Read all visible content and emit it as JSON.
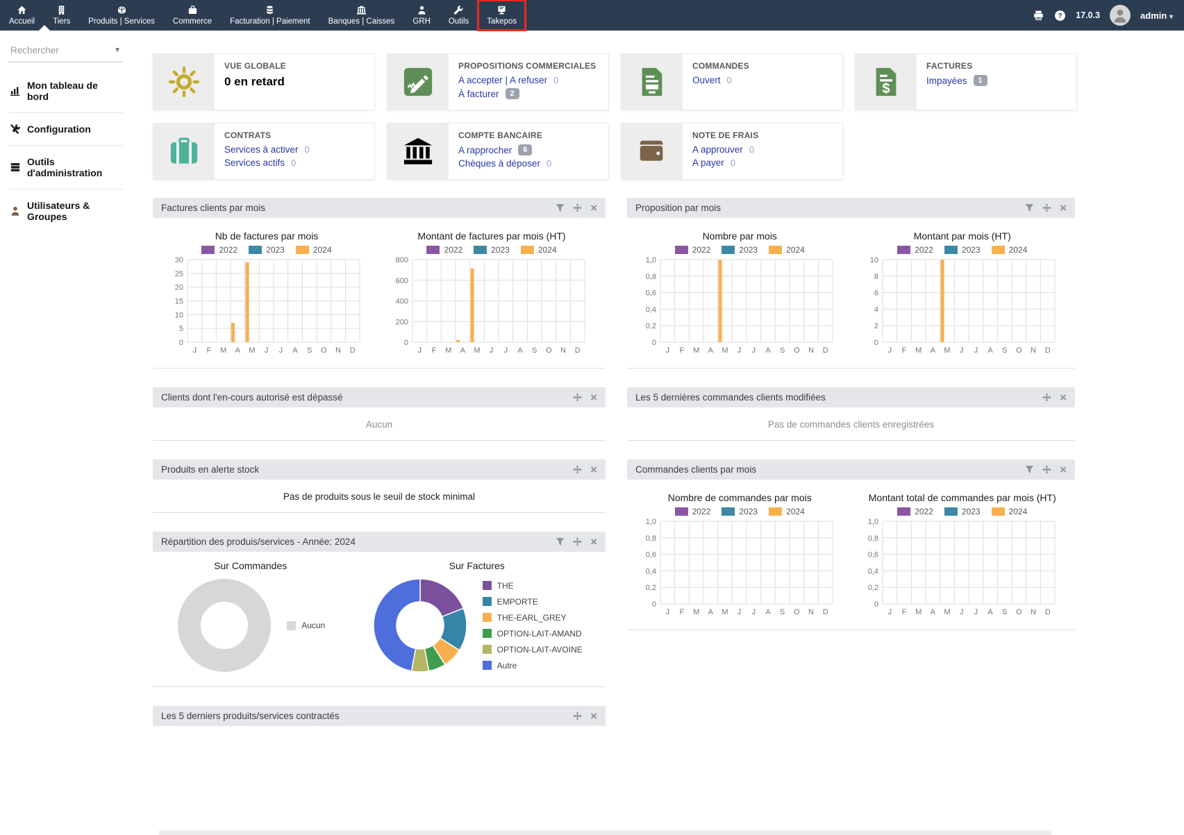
{
  "topnav": {
    "items": [
      {
        "id": "accueil",
        "label": "Accueil",
        "icon": "home-icon",
        "active": true
      },
      {
        "id": "tiers",
        "label": "Tiers",
        "icon": "building-icon"
      },
      {
        "id": "produits-services",
        "label": "Produits | Services",
        "icon": "product-icon"
      },
      {
        "id": "commerce",
        "label": "Commerce",
        "icon": "briefcase-icon"
      },
      {
        "id": "facturation-paiement",
        "label": "Facturation | Paiement",
        "icon": "coins-icon"
      },
      {
        "id": "banques-caisses",
        "label": "Banques | Caisses",
        "icon": "bank-icon"
      },
      {
        "id": "grh",
        "label": "GRH",
        "icon": "person-icon"
      },
      {
        "id": "outils",
        "label": "Outils",
        "icon": "wrench-icon"
      },
      {
        "id": "takepos",
        "label": "Takepos",
        "icon": "pos-icon",
        "highlighted": true
      }
    ],
    "right": {
      "version": "17.0.3",
      "user": "admin"
    }
  },
  "sidebar": {
    "search_placeholder": "Rechercher",
    "items": [
      {
        "id": "dashboard",
        "label": "Mon tableau de bord",
        "icon": "bar-chart-icon"
      },
      {
        "id": "configuration",
        "label": "Configuration",
        "icon": "tools-icon"
      },
      {
        "id": "admin-tools",
        "label": "Outils d'administration",
        "icon": "server-icon"
      },
      {
        "id": "users-groups",
        "label": "Utilisateurs & Groupes",
        "icon": "user-icon",
        "brown": true
      }
    ]
  },
  "cards": [
    {
      "id": "vue-globale",
      "title": "VUE GLOBALE",
      "icon": "sun-icon",
      "icon_color": "#c2ad2f",
      "big_text": "0 en retard"
    },
    {
      "id": "propositions",
      "title": "PROPOSITIONS COMMERCIALES",
      "icon": "doc-edit-icon",
      "icon_color": "#5e8f56",
      "lines": [
        {
          "text": "A accepter | A refuser",
          "count": "0"
        },
        {
          "text": "À facturer",
          "badge": "2"
        }
      ]
    },
    {
      "id": "commandes",
      "title": "COMMANDES",
      "icon": "doc-lines-icon",
      "icon_color": "#5e8f56",
      "lines": [
        {
          "text": "Ouvert",
          "count": "0"
        }
      ]
    },
    {
      "id": "factures",
      "title": "FACTURES",
      "icon": "doc-dollar-icon",
      "icon_color": "#5e8f56",
      "lines": [
        {
          "text": "Impayées",
          "badge": "1"
        }
      ]
    },
    {
      "id": "contrats",
      "title": "CONTRATS",
      "icon": "suitcase-icon",
      "icon_color": "#4fb39a",
      "lines": [
        {
          "text": "Services à activer",
          "count": "0"
        },
        {
          "text": "Services actifs",
          "count": "0"
        }
      ]
    },
    {
      "id": "compte-bancaire",
      "title": "COMPTE BANCAIRE",
      "icon": "bank-icon",
      "icon_color": "#b0ab3a",
      "lines": [
        {
          "text": "A rapprocher",
          "badge": "6"
        },
        {
          "text": "Chèques à déposer",
          "count": "0"
        }
      ]
    },
    {
      "id": "note-de-frais",
      "title": "NOTE DE FRAIS",
      "icon": "wallet-icon",
      "icon_color": "#7d6347",
      "lines": [
        {
          "text": "A approuver",
          "count": "0"
        },
        {
          "text": "A payer",
          "count": "0"
        }
      ]
    }
  ],
  "widgets": {
    "left": [
      {
        "id": "factures-par-mois",
        "title": "Factures clients par mois",
        "icons": [
          "filter",
          "move",
          "close"
        ],
        "chart_data": [
          {
            "id": "nb-factures",
            "type": "bar",
            "title": "Nb de factures par mois",
            "ymax": 30,
            "yticks": [
              "30",
              "25",
              "20",
              "15",
              "10",
              "5",
              "0"
            ],
            "categories": [
              "J",
              "F",
              "M",
              "A",
              "M",
              "J",
              "J",
              "A",
              "S",
              "O",
              "N",
              "D"
            ],
            "series": [
              {
                "name": "2022",
                "color": "#8a57a5",
                "values": [
                  0,
                  0,
                  0,
                  0,
                  0,
                  0,
                  0,
                  0,
                  0,
                  0,
                  0,
                  0
                ]
              },
              {
                "name": "2023",
                "color": "#3e87a6",
                "values": [
                  0,
                  0,
                  0,
                  0,
                  0,
                  0,
                  0,
                  0,
                  0,
                  0,
                  0,
                  0
                ]
              },
              {
                "name": "2024",
                "color": "#f8b04e",
                "values": [
                  0,
                  0,
                  7,
                  29,
                  0,
                  0,
                  0,
                  0,
                  0,
                  0,
                  0,
                  0
                ]
              }
            ]
          },
          {
            "id": "montant-factures",
            "type": "bar",
            "title": "Montant de factures par mois (HT)",
            "ymax": 800,
            "yticks": [
              "800",
              "600",
              "400",
              "200",
              "0"
            ],
            "categories": [
              "J",
              "F",
              "M",
              "A",
              "M",
              "J",
              "J",
              "A",
              "S",
              "O",
              "N",
              "D"
            ],
            "series": [
              {
                "name": "2022",
                "color": "#8a57a5",
                "values": [
                  0,
                  0,
                  0,
                  0,
                  0,
                  0,
                  0,
                  0,
                  0,
                  0,
                  0,
                  0
                ]
              },
              {
                "name": "2023",
                "color": "#3e87a6",
                "values": [
                  0,
                  0,
                  0,
                  0,
                  0,
                  0,
                  0,
                  0,
                  0,
                  0,
                  0,
                  0
                ]
              },
              {
                "name": "2024",
                "color": "#f8b04e",
                "values": [
                  0,
                  0,
                  20,
                  715,
                  0,
                  0,
                  0,
                  0,
                  0,
                  0,
                  0,
                  0
                ]
              }
            ]
          }
        ]
      },
      {
        "id": "encours-depasse",
        "title": "Clients dont l'en-cours autorisé est dépassé",
        "icons": [
          "move",
          "close"
        ],
        "body_text": "Aucun",
        "muted": true
      },
      {
        "id": "alerte-stock",
        "title": "Produits en alerte stock",
        "icons": [
          "move",
          "close"
        ],
        "body_text": "Pas de produits sous le seuil de stock minimal",
        "muted": false
      },
      {
        "id": "repartition-produits",
        "title": "Répartition des produis/services - Année: 2024",
        "icons": [
          "filter",
          "move",
          "close"
        ],
        "chart_data": [
          {
            "id": "donut-commandes",
            "type": "donut",
            "title": "Sur Commandes",
            "slices": [
              {
                "label": "Aucun",
                "value": 100,
                "color": "#d7d7d7"
              }
            ]
          },
          {
            "id": "donut-factures",
            "type": "donut",
            "title": "Sur Factures",
            "slices": [
              {
                "label": "THE",
                "value": 19,
                "color": "#7b519d"
              },
              {
                "label": "EMPORTE",
                "value": 15,
                "color": "#3585a8"
              },
              {
                "label": "THE-EARL_GREY",
                "value": 7,
                "color": "#f8b04e"
              },
              {
                "label": "OPTION-LAIT-AMAND",
                "value": 6,
                "color": "#3f9e4e"
              },
              {
                "label": "OPTION-LAIT-AVOINE",
                "value": 6,
                "color": "#b4b565"
              },
              {
                "label": "Autre",
                "value": 47,
                "color": "#4d6edb"
              }
            ]
          }
        ]
      },
      {
        "id": "derniers-produits",
        "title": "Les 5 derniers produits/services contractés",
        "icons": [
          "move",
          "close"
        ]
      }
    ],
    "right": [
      {
        "id": "proposition-par-mois",
        "title": "Proposition par mois",
        "icons": [
          "filter",
          "move",
          "close"
        ],
        "chart_data": [
          {
            "id": "nb-propositions",
            "type": "bar",
            "title": "Nombre par mois",
            "ymax": 1,
            "yticks": [
              "1,0",
              "0,8",
              "0,6",
              "0,4",
              "0,2",
              "0"
            ],
            "categories": [
              "J",
              "F",
              "M",
              "A",
              "M",
              "J",
              "J",
              "A",
              "S",
              "O",
              "N",
              "D"
            ],
            "series": [
              {
                "name": "2022",
                "color": "#8a57a5",
                "values": [
                  0,
                  0,
                  0,
                  0,
                  0,
                  0,
                  0,
                  0,
                  0,
                  0,
                  0,
                  0
                ]
              },
              {
                "name": "2023",
                "color": "#3e87a6",
                "values": [
                  0,
                  0,
                  0,
                  0,
                  0,
                  0,
                  0,
                  0,
                  0,
                  0,
                  0,
                  0
                ]
              },
              {
                "name": "2024",
                "color": "#f8b04e",
                "values": [
                  0,
                  0,
                  0,
                  1,
                  0,
                  0,
                  0,
                  0,
                  0,
                  0,
                  0,
                  0
                ]
              }
            ]
          },
          {
            "id": "montant-propositions",
            "type": "bar",
            "title": "Montant par mois (HT)",
            "ymax": 10,
            "yticks": [
              "10",
              "8",
              "6",
              "4",
              "2",
              "0"
            ],
            "categories": [
              "J",
              "F",
              "M",
              "A",
              "M",
              "J",
              "J",
              "A",
              "S",
              "O",
              "N",
              "D"
            ],
            "series": [
              {
                "name": "2022",
                "color": "#8a57a5",
                "values": [
                  0,
                  0,
                  0,
                  0,
                  0,
                  0,
                  0,
                  0,
                  0,
                  0,
                  0,
                  0
                ]
              },
              {
                "name": "2023",
                "color": "#3e87a6",
                "values": [
                  0,
                  0,
                  0,
                  0,
                  0,
                  0,
                  0,
                  0,
                  0,
                  0,
                  0,
                  0
                ]
              },
              {
                "name": "2024",
                "color": "#f8b04e",
                "values": [
                  0,
                  0,
                  0,
                  10,
                  0,
                  0,
                  0,
                  0,
                  0,
                  0,
                  0,
                  0
                ]
              }
            ]
          }
        ]
      },
      {
        "id": "dernieres-commandes",
        "title": "Les 5 dernières commandes clients modifiées",
        "icons": [
          "move",
          "close"
        ],
        "body_text": "Pas de commandes clients enregistrées",
        "muted": true
      },
      {
        "id": "commandes-par-mois",
        "title": "Commandes clients par mois",
        "icons": [
          "filter",
          "move",
          "close"
        ],
        "chart_data": [
          {
            "id": "nb-commandes",
            "type": "bar",
            "title": "Nombre de commandes par mois",
            "ymax": 1,
            "yticks": [
              "1,0",
              "0,8",
              "0,6",
              "0,4",
              "0,2",
              "0"
            ],
            "categories": [
              "J",
              "F",
              "M",
              "A",
              "M",
              "J",
              "J",
              "A",
              "S",
              "O",
              "N",
              "D"
            ],
            "series": [
              {
                "name": "2022",
                "color": "#8a57a5",
                "values": [
                  0,
                  0,
                  0,
                  0,
                  0,
                  0,
                  0,
                  0,
                  0,
                  0,
                  0,
                  0
                ]
              },
              {
                "name": "2023",
                "color": "#3e87a6",
                "values": [
                  0,
                  0,
                  0,
                  0,
                  0,
                  0,
                  0,
                  0,
                  0,
                  0,
                  0,
                  0
                ]
              },
              {
                "name": "2024",
                "color": "#f8b04e",
                "values": [
                  0,
                  0,
                  0,
                  0,
                  0,
                  0,
                  0,
                  0,
                  0,
                  0,
                  0,
                  0
                ]
              }
            ]
          },
          {
            "id": "montant-commandes",
            "type": "bar",
            "title": "Montant total de commandes par mois (HT)",
            "ymax": 1,
            "yticks": [
              "1,0",
              "0,8",
              "0,6",
              "0,4",
              "0,2",
              "0"
            ],
            "categories": [
              "J",
              "F",
              "M",
              "A",
              "M",
              "J",
              "J",
              "A",
              "S",
              "O",
              "N",
              "D"
            ],
            "series": [
              {
                "name": "2022",
                "color": "#8a57a5",
                "values": [
                  0,
                  0,
                  0,
                  0,
                  0,
                  0,
                  0,
                  0,
                  0,
                  0,
                  0,
                  0
                ]
              },
              {
                "name": "2023",
                "color": "#3e87a6",
                "values": [
                  0,
                  0,
                  0,
                  0,
                  0,
                  0,
                  0,
                  0,
                  0,
                  0,
                  0,
                  0
                ]
              },
              {
                "name": "2024",
                "color": "#f8b04e",
                "values": [
                  0,
                  0,
                  0,
                  0,
                  0,
                  0,
                  0,
                  0,
                  0,
                  0,
                  0,
                  0
                ]
              }
            ]
          }
        ]
      }
    ]
  }
}
